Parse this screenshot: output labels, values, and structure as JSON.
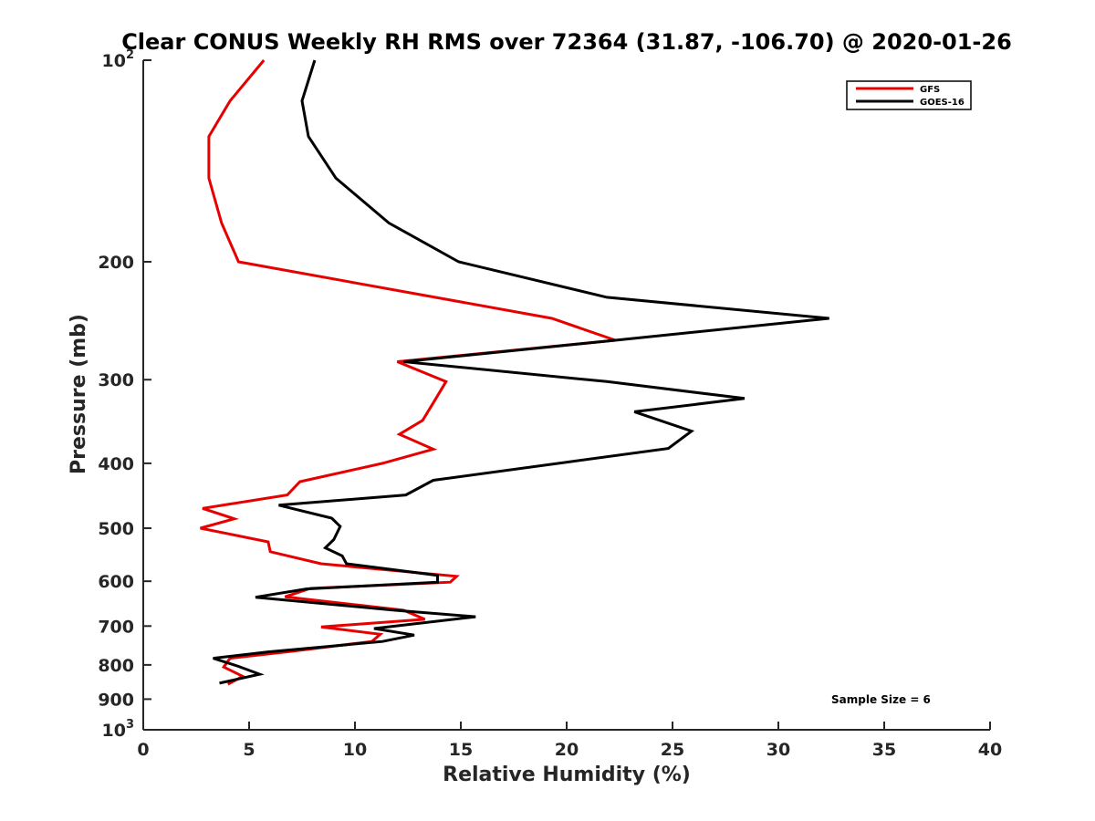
{
  "chart_data": {
    "type": "line",
    "title": "Clear CONUS Weekly RH RMS over 72364 (31.87, -106.70) @ 2020-01-26",
    "xlabel": "Relative Humidity (%)",
    "ylabel": "Pressure (mb)",
    "xlim": [
      0,
      40
    ],
    "ylim": [
      100,
      1000
    ],
    "y_scale": "log",
    "y_reversed": true,
    "x_ticks": [
      "0",
      "5",
      "10",
      "15",
      "20",
      "25",
      "30",
      "35",
      "40"
    ],
    "y_ticks": [
      {
        "value": 100,
        "base": "10",
        "exp": "2"
      },
      {
        "value": 200,
        "label": "200"
      },
      {
        "value": 300,
        "label": "300"
      },
      {
        "value": 400,
        "label": "400"
      },
      {
        "value": 500,
        "label": "500"
      },
      {
        "value": 600,
        "label": "600"
      },
      {
        "value": 700,
        "label": "700"
      },
      {
        "value": 800,
        "label": "800"
      },
      {
        "value": 900,
        "label": "900"
      },
      {
        "value": 1000,
        "base": "10",
        "exp": "3"
      }
    ],
    "grid": false,
    "legend_position": "top-right",
    "annotation": "Sample Size = 6",
    "series": [
      {
        "name": "GFS",
        "color": "#e60000",
        "points": [
          [
            5.7,
            100
          ],
          [
            4.1,
            115
          ],
          [
            3.1,
            130
          ],
          [
            3.1,
            150
          ],
          [
            3.7,
            175
          ],
          [
            4.5,
            200
          ],
          [
            19.3,
            243
          ],
          [
            22.3,
            262
          ],
          [
            12.0,
            282
          ],
          [
            14.3,
            302
          ],
          [
            13.7,
            325
          ],
          [
            13.2,
            345
          ],
          [
            12.1,
            362
          ],
          [
            13.7,
            381
          ],
          [
            11.3,
            400
          ],
          [
            7.4,
            426
          ],
          [
            6.8,
            446
          ],
          [
            2.8,
            467
          ],
          [
            4.3,
            484
          ],
          [
            2.7,
            500
          ],
          [
            5.9,
            524
          ],
          [
            6.0,
            542
          ],
          [
            8.4,
            565
          ],
          [
            14.8,
            590
          ],
          [
            14.5,
            602
          ],
          [
            7.9,
            615
          ],
          [
            6.7,
            633
          ],
          [
            12.3,
            663
          ],
          [
            13.3,
            684
          ],
          [
            8.4,
            702
          ],
          [
            11.2,
            720
          ],
          [
            10.8,
            738
          ],
          [
            6.9,
            764
          ],
          [
            4.1,
            782
          ],
          [
            3.8,
            806
          ],
          [
            4.7,
            832
          ],
          [
            4.0,
            855
          ]
        ]
      },
      {
        "name": "GOES-16",
        "color": "#000000",
        "points": [
          [
            8.1,
            100
          ],
          [
            7.5,
            115
          ],
          [
            7.8,
            130
          ],
          [
            9.1,
            150
          ],
          [
            11.6,
            175
          ],
          [
            14.9,
            200
          ],
          [
            21.9,
            226
          ],
          [
            32.4,
            243
          ],
          [
            22.3,
            262
          ],
          [
            12.3,
            282
          ],
          [
            21.9,
            302
          ],
          [
            28.4,
            320
          ],
          [
            23.2,
            335
          ],
          [
            25.9,
            358
          ],
          [
            24.8,
            380
          ],
          [
            13.7,
            424
          ],
          [
            12.4,
            446
          ],
          [
            6.4,
            462
          ],
          [
            8.9,
            483
          ],
          [
            9.3,
            497
          ],
          [
            9.0,
            520
          ],
          [
            8.6,
            535
          ],
          [
            9.4,
            550
          ],
          [
            9.6,
            565
          ],
          [
            13.9,
            588
          ],
          [
            13.9,
            602
          ],
          [
            7.7,
            616
          ],
          [
            5.3,
            634
          ],
          [
            11.9,
            663
          ],
          [
            15.7,
            678
          ],
          [
            10.9,
            706
          ],
          [
            12.8,
            722
          ],
          [
            11.3,
            738
          ],
          [
            5.9,
            765
          ],
          [
            3.3,
            782
          ],
          [
            4.5,
            804
          ],
          [
            5.5,
            826
          ],
          [
            3.6,
            852
          ]
        ]
      }
    ]
  }
}
